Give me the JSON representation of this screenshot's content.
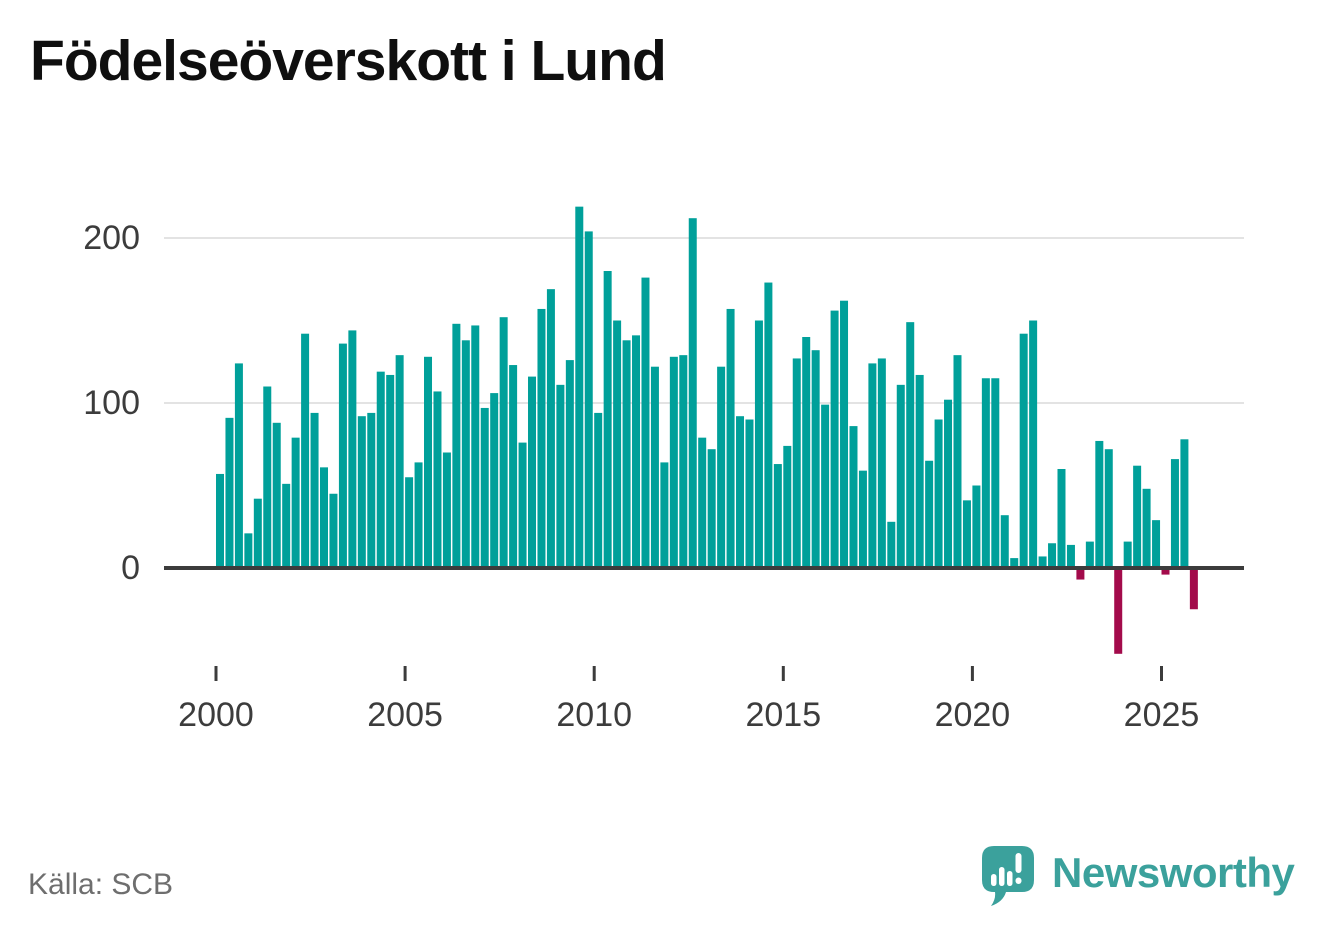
{
  "page": {
    "title": "Födelseöverskott i Lund"
  },
  "chart_data": {
    "type": "bar",
    "title": "Födelseöverskott i Lund",
    "frequency": "quarterly",
    "start_period": "2000-Q1",
    "end_period": "2025-Q4",
    "values": [
      57,
      91,
      124,
      21,
      42,
      110,
      88,
      51,
      79,
      142,
      94,
      61,
      45,
      136,
      144,
      92,
      94,
      119,
      117,
      129,
      55,
      64,
      128,
      107,
      70,
      148,
      138,
      147,
      97,
      106,
      152,
      123,
      76,
      116,
      157,
      169,
      111,
      126,
      219,
      204,
      94,
      180,
      150,
      138,
      141,
      176,
      122,
      64,
      128,
      129,
      212,
      79,
      72,
      122,
      157,
      92,
      90,
      150,
      173,
      63,
      74,
      127,
      140,
      132,
      99,
      156,
      162,
      86,
      59,
      124,
      127,
      28,
      111,
      149,
      117,
      65,
      90,
      102,
      129,
      41,
      50,
      115,
      115,
      32,
      6,
      142,
      150,
      7,
      15,
      60,
      14,
      -7,
      16,
      77,
      72,
      -52,
      16,
      62,
      48,
      29,
      -4,
      66,
      78,
      -25
    ],
    "x_tick_labels": [
      "2000",
      "2005",
      "2010",
      "2015",
      "2020",
      "2025"
    ],
    "x_tick_indices": [
      0,
      20,
      40,
      60,
      80,
      100
    ],
    "y_ticks": [
      "0",
      "100",
      "200"
    ],
    "y_tick_values": [
      0,
      100,
      200
    ],
    "y_gridlines": [
      100,
      200
    ],
    "ylim": [
      -60,
      230
    ],
    "legend": "none",
    "grid": "horizontal",
    "bar_color_positive": "#00a09a",
    "bar_color_negative": "#a30b4b",
    "axis_color": "#3c3c3c",
    "grid_color": "#e3e3e3"
  },
  "footer": {
    "source_label": "Källa: SCB",
    "brand_wordmark": "Newsworthy",
    "brand_color": "#3ba19c"
  }
}
